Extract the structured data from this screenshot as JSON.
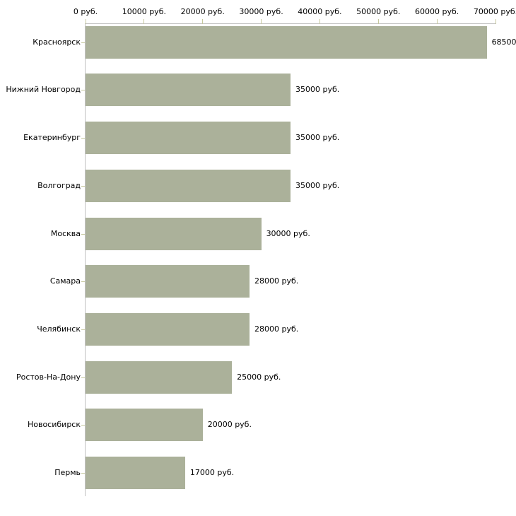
{
  "chart_data": {
    "type": "bar",
    "orientation": "horizontal",
    "title": "",
    "xlabel": "",
    "ylabel": "",
    "categories": [
      "Красноярск",
      "Нижний Новгород",
      "Екатеринбург",
      "Волгоград",
      "Москва",
      "Самара",
      "Челябинск",
      "Ростов-На-Дону",
      "Новосибирск",
      "Пермь"
    ],
    "values": [
      68500,
      35000,
      35000,
      35000,
      30000,
      28000,
      28000,
      25000,
      20000,
      17000
    ],
    "value_labels": [
      "68500",
      "35000 руб.",
      "35000 руб.",
      "35000 руб.",
      "30000 руб.",
      "28000 руб.",
      "28000 руб.",
      "25000 руб.",
      "20000 руб.",
      "17000 руб."
    ],
    "xlim": [
      0,
      70000
    ],
    "x_ticks": [
      0,
      10000,
      20000,
      30000,
      40000,
      50000,
      60000,
      70000
    ],
    "x_tick_labels": [
      "0 руб.",
      "10000 руб.",
      "20000 руб.",
      "30000 руб.",
      "40000 руб.",
      "50000 руб.",
      "60000 руб.",
      "70000 руб."
    ],
    "grid": false,
    "legend": false,
    "axis_position": "top"
  },
  "colors": {
    "bar": "#abb19a",
    "axis_line": "#c2c2c2",
    "tick": "#c6c89e",
    "text": "#000000",
    "background": "#ffffff"
  }
}
